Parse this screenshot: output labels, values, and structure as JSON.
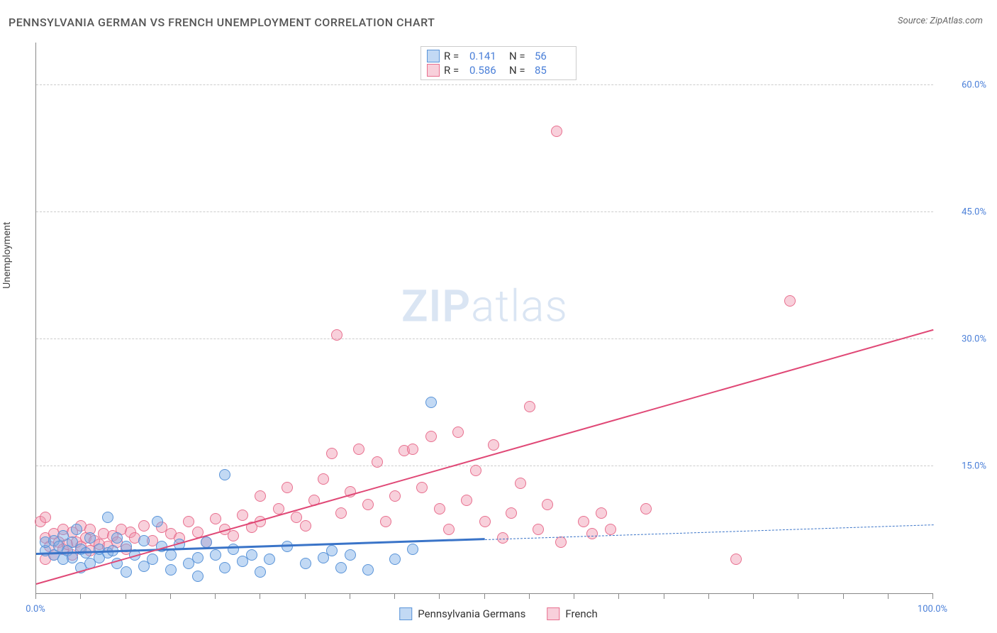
{
  "title": "PENNSYLVANIA GERMAN VS FRENCH UNEMPLOYMENT CORRELATION CHART",
  "source_label": "Source: ZipAtlas.com",
  "ylabel": "Unemployment",
  "watermark": {
    "bold": "ZIP",
    "rest": "atlas"
  },
  "chart": {
    "type": "scatter_with_regression",
    "background_color": "#ffffff",
    "grid_color": "#cccccc",
    "grid_dash": "dashed",
    "axis_color": "#888888",
    "tick_label_color": "#4a7fd8",
    "tick_label_fontsize": 13,
    "title_fontsize": 16,
    "label_fontsize": 14,
    "point_radius": 8,
    "point_stroke_width": 1.5,
    "xlim": [
      0,
      100
    ],
    "ylim": [
      0,
      65
    ],
    "x_ticks": [
      0,
      5,
      10,
      15,
      20,
      25,
      30,
      35,
      40,
      45,
      50,
      55,
      60,
      65,
      70,
      75,
      80,
      85,
      90,
      95,
      100
    ],
    "x_tick_labels": {
      "0": "0.0%",
      "100": "100.0%"
    },
    "y_ticks": [
      15,
      30,
      45,
      60
    ],
    "y_tick_labels": {
      "15": "15.0%",
      "30": "30.0%",
      "45": "45.0%",
      "60": "60.0%"
    }
  },
  "series": [
    {
      "name": "Pennsylvania Germans",
      "fill_color": "rgba(120, 170, 230, 0.45)",
      "stroke_color": "#5a94d8",
      "trend_color": "#3a74c8",
      "trend_width": 3,
      "trend_solid_xmax": 50,
      "trend": {
        "y_at_x0": 4.5,
        "y_at_x100": 8.0
      },
      "R": "0.141",
      "N": "56",
      "points": [
        [
          1,
          5
        ],
        [
          1,
          6
        ],
        [
          2,
          4.5
        ],
        [
          2,
          6.2
        ],
        [
          2.5,
          5.5
        ],
        [
          3,
          4
        ],
        [
          3,
          6.8
        ],
        [
          3.5,
          5
        ],
        [
          4,
          4.2
        ],
        [
          4,
          6
        ],
        [
          4.5,
          7.5
        ],
        [
          5,
          3
        ],
        [
          5,
          5.2
        ],
        [
          5.5,
          4.8
        ],
        [
          6,
          3.5
        ],
        [
          6,
          6.5
        ],
        [
          7,
          4.2
        ],
        [
          7,
          5.2
        ],
        [
          8,
          4.8
        ],
        [
          8,
          9
        ],
        [
          8.5,
          5
        ],
        [
          9,
          3.5
        ],
        [
          9,
          6.5
        ],
        [
          10,
          2.5
        ],
        [
          10,
          5.5
        ],
        [
          11,
          4.5
        ],
        [
          12,
          3.2
        ],
        [
          12,
          6.2
        ],
        [
          13,
          4
        ],
        [
          13.5,
          8.5
        ],
        [
          14,
          5.5
        ],
        [
          15,
          2.8
        ],
        [
          15,
          4.5
        ],
        [
          16,
          5.8
        ],
        [
          17,
          3.5
        ],
        [
          18,
          2
        ],
        [
          18,
          4.2
        ],
        [
          19,
          6
        ],
        [
          20,
          4.5
        ],
        [
          21,
          3
        ],
        [
          21,
          14
        ],
        [
          22,
          5.2
        ],
        [
          23,
          3.8
        ],
        [
          24,
          4.5
        ],
        [
          25,
          2.5
        ],
        [
          26,
          4
        ],
        [
          28,
          5.5
        ],
        [
          30,
          3.5
        ],
        [
          32,
          4.2
        ],
        [
          33,
          5
        ],
        [
          34,
          3
        ],
        [
          35,
          4.5
        ],
        [
          37,
          2.8
        ],
        [
          40,
          4
        ],
        [
          42,
          5.2
        ],
        [
          44,
          22.5
        ]
      ]
    },
    {
      "name": "French",
      "fill_color": "rgba(240, 150, 175, 0.45)",
      "stroke_color": "#e8708f",
      "trend_color": "#e04876",
      "trend_width": 2.5,
      "trend_solid_xmax": 100,
      "trend": {
        "y_at_x0": 1.0,
        "y_at_x100": 31.0
      },
      "R": "0.586",
      "N": "85",
      "points": [
        [
          0.5,
          8.5
        ],
        [
          1,
          4
        ],
        [
          1,
          6.5
        ],
        [
          1,
          9
        ],
        [
          1.5,
          5.5
        ],
        [
          2,
          4.5
        ],
        [
          2,
          7
        ],
        [
          2.5,
          6
        ],
        [
          3,
          5.2
        ],
        [
          3,
          7.5
        ],
        [
          3.5,
          5.8
        ],
        [
          4,
          4.5
        ],
        [
          4,
          7.2
        ],
        [
          4.5,
          6
        ],
        [
          5,
          5.5
        ],
        [
          5,
          8
        ],
        [
          5.5,
          6.5
        ],
        [
          6,
          5
        ],
        [
          6,
          7.5
        ],
        [
          6.5,
          6.2
        ],
        [
          7,
          5.8
        ],
        [
          7.5,
          7
        ],
        [
          8,
          5.5
        ],
        [
          8.5,
          6.8
        ],
        [
          9,
          6
        ],
        [
          9.5,
          7.5
        ],
        [
          10,
          5.2
        ],
        [
          10.5,
          7.2
        ],
        [
          11,
          6.5
        ],
        [
          12,
          8
        ],
        [
          13,
          6.2
        ],
        [
          14,
          7.8
        ],
        [
          15,
          7
        ],
        [
          16,
          6.5
        ],
        [
          17,
          8.5
        ],
        [
          18,
          7.2
        ],
        [
          19,
          6
        ],
        [
          20,
          8.8
        ],
        [
          21,
          7.5
        ],
        [
          22,
          6.8
        ],
        [
          23,
          9.2
        ],
        [
          24,
          7.8
        ],
        [
          25,
          11.5
        ],
        [
          25,
          8.5
        ],
        [
          27,
          10
        ],
        [
          28,
          12.5
        ],
        [
          29,
          9
        ],
        [
          30,
          8
        ],
        [
          31,
          11
        ],
        [
          32,
          13.5
        ],
        [
          33,
          16.5
        ],
        [
          33.5,
          30.5
        ],
        [
          34,
          9.5
        ],
        [
          35,
          12
        ],
        [
          36,
          17
        ],
        [
          37,
          10.5
        ],
        [
          38,
          15.5
        ],
        [
          39,
          8.5
        ],
        [
          40,
          11.5
        ],
        [
          41,
          16.8
        ],
        [
          42,
          17
        ],
        [
          43,
          12.5
        ],
        [
          44,
          18.5
        ],
        [
          45,
          10
        ],
        [
          46,
          7.5
        ],
        [
          47,
          19
        ],
        [
          48,
          11
        ],
        [
          49,
          14.5
        ],
        [
          50,
          8.5
        ],
        [
          51,
          17.5
        ],
        [
          52,
          6.5
        ],
        [
          53,
          9.5
        ],
        [
          54,
          13
        ],
        [
          55,
          22
        ],
        [
          56,
          7.5
        ],
        [
          57,
          10.5
        ],
        [
          58,
          54.5
        ],
        [
          58.5,
          6
        ],
        [
          61,
          8.5
        ],
        [
          62,
          7
        ],
        [
          63,
          9.5
        ],
        [
          64,
          7.5
        ],
        [
          68,
          10
        ],
        [
          78,
          4
        ],
        [
          84,
          34.5
        ]
      ]
    }
  ],
  "bottom_legend": {
    "series1_label": "Pennsylvania Germans",
    "series2_label": "French"
  },
  "stats_box": {
    "R_label": "R =",
    "N_label": "N ="
  }
}
